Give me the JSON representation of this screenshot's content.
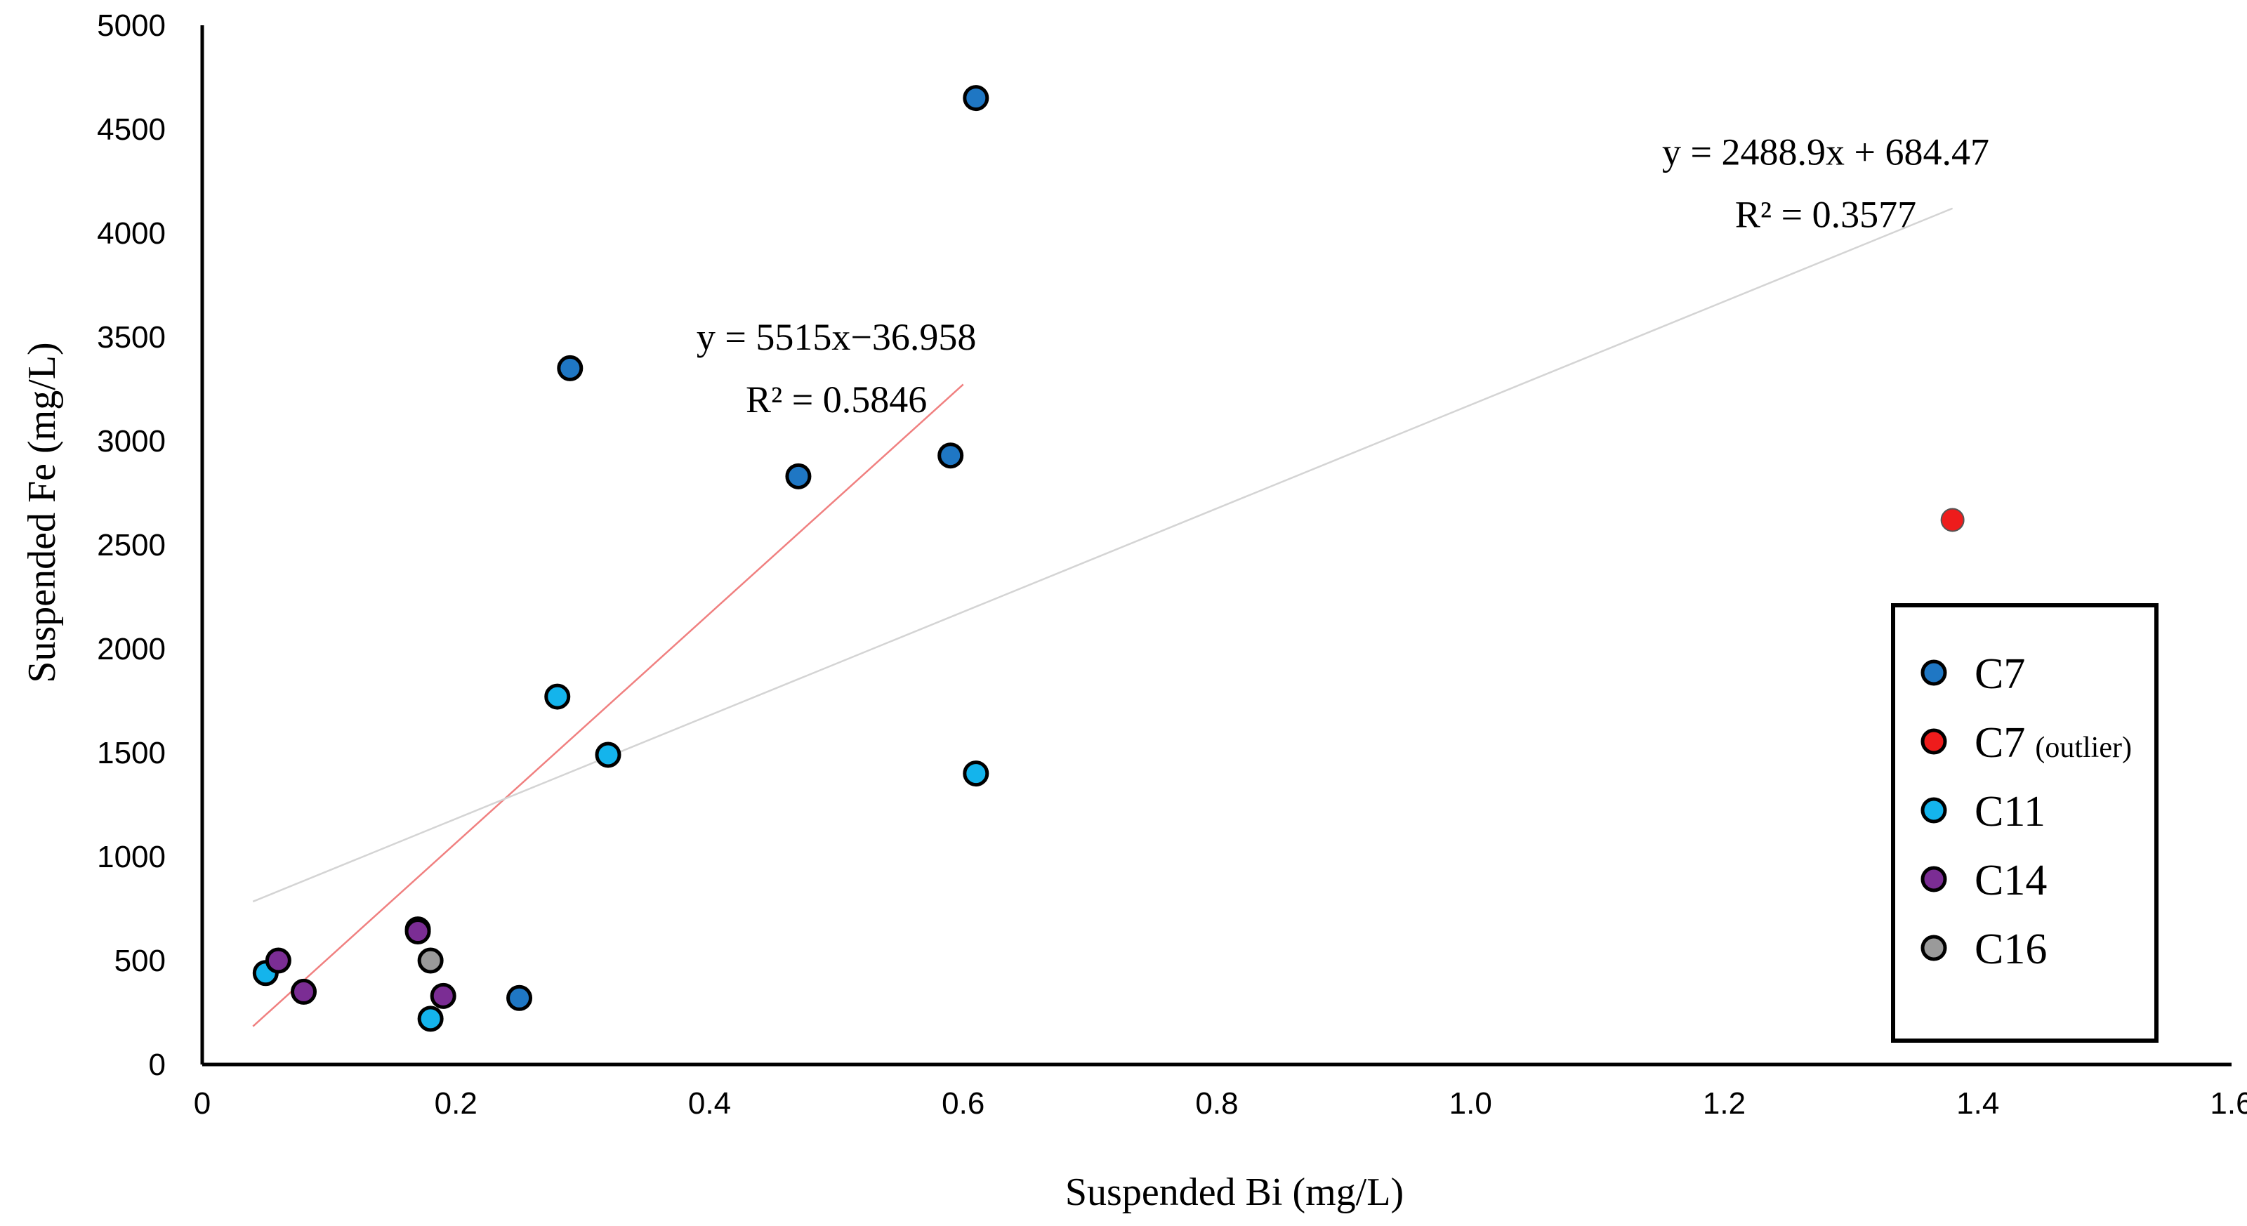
{
  "chart_data": {
    "type": "scatter",
    "xlabel": "Suspended Bi (mg/L)",
    "ylabel": "Suspended Fe (mg/L)",
    "xlim": [
      0,
      1.6
    ],
    "ylim": [
      0,
      5000
    ],
    "xticks": [
      0,
      0.2,
      0.4,
      0.6,
      0.8,
      1.0,
      1.2,
      1.4,
      1.6
    ],
    "xtick_labels": [
      "0",
      "0.2",
      "0.4",
      "0.6",
      "0.8",
      "1.0",
      "1.2",
      "1.4",
      "1.6"
    ],
    "yticks": [
      0,
      500,
      1000,
      1500,
      2000,
      2500,
      3000,
      3500,
      4000,
      4500,
      5000
    ],
    "ytick_labels": [
      "0",
      "500",
      "1000",
      "1500",
      "2000",
      "2500",
      "3000",
      "3500",
      "4000",
      "4500",
      "5000"
    ],
    "grid": false,
    "legend_position": "bottom-right",
    "series": [
      {
        "name": "C7",
        "color": "#1f77c4",
        "points": [
          [
            0.61,
            4650
          ],
          [
            0.29,
            3350
          ],
          [
            0.47,
            2830
          ],
          [
            0.59,
            2930
          ],
          [
            0.25,
            320
          ]
        ]
      },
      {
        "name": "C7",
        "name_suffix": "(outlier)",
        "color": "#ee1c1c",
        "points": [
          [
            1.38,
            2620
          ]
        ]
      },
      {
        "name": "C11",
        "color": "#14b4ec",
        "points": [
          [
            0.28,
            1770
          ],
          [
            0.32,
            1490
          ],
          [
            0.61,
            1400
          ],
          [
            0.05,
            440
          ],
          [
            0.18,
            220
          ],
          [
            0.17,
            650
          ]
        ]
      },
      {
        "name": "C14",
        "color": "#7b2d94",
        "points": [
          [
            0.06,
            500
          ],
          [
            0.08,
            350
          ],
          [
            0.17,
            640
          ],
          [
            0.19,
            330
          ]
        ]
      },
      {
        "name": "C16",
        "color": "#9a9a9a",
        "points": [
          [
            0.18,
            500
          ]
        ]
      }
    ],
    "trendlines": [
      {
        "label_eq": "y = 5515x−36.958",
        "label_r2": "R² = 0.5846",
        "slope": 5515,
        "intercept": -36.958,
        "x_range": [
          0.04,
          0.6
        ],
        "color": "#f08080"
      },
      {
        "label_eq": "y = 2488.9x + 684.47",
        "label_r2": "R² = 0.3577",
        "slope": 2488.9,
        "intercept": 684.47,
        "x_range": [
          0.04,
          1.38
        ],
        "color": "#d4d4d4"
      }
    ]
  }
}
